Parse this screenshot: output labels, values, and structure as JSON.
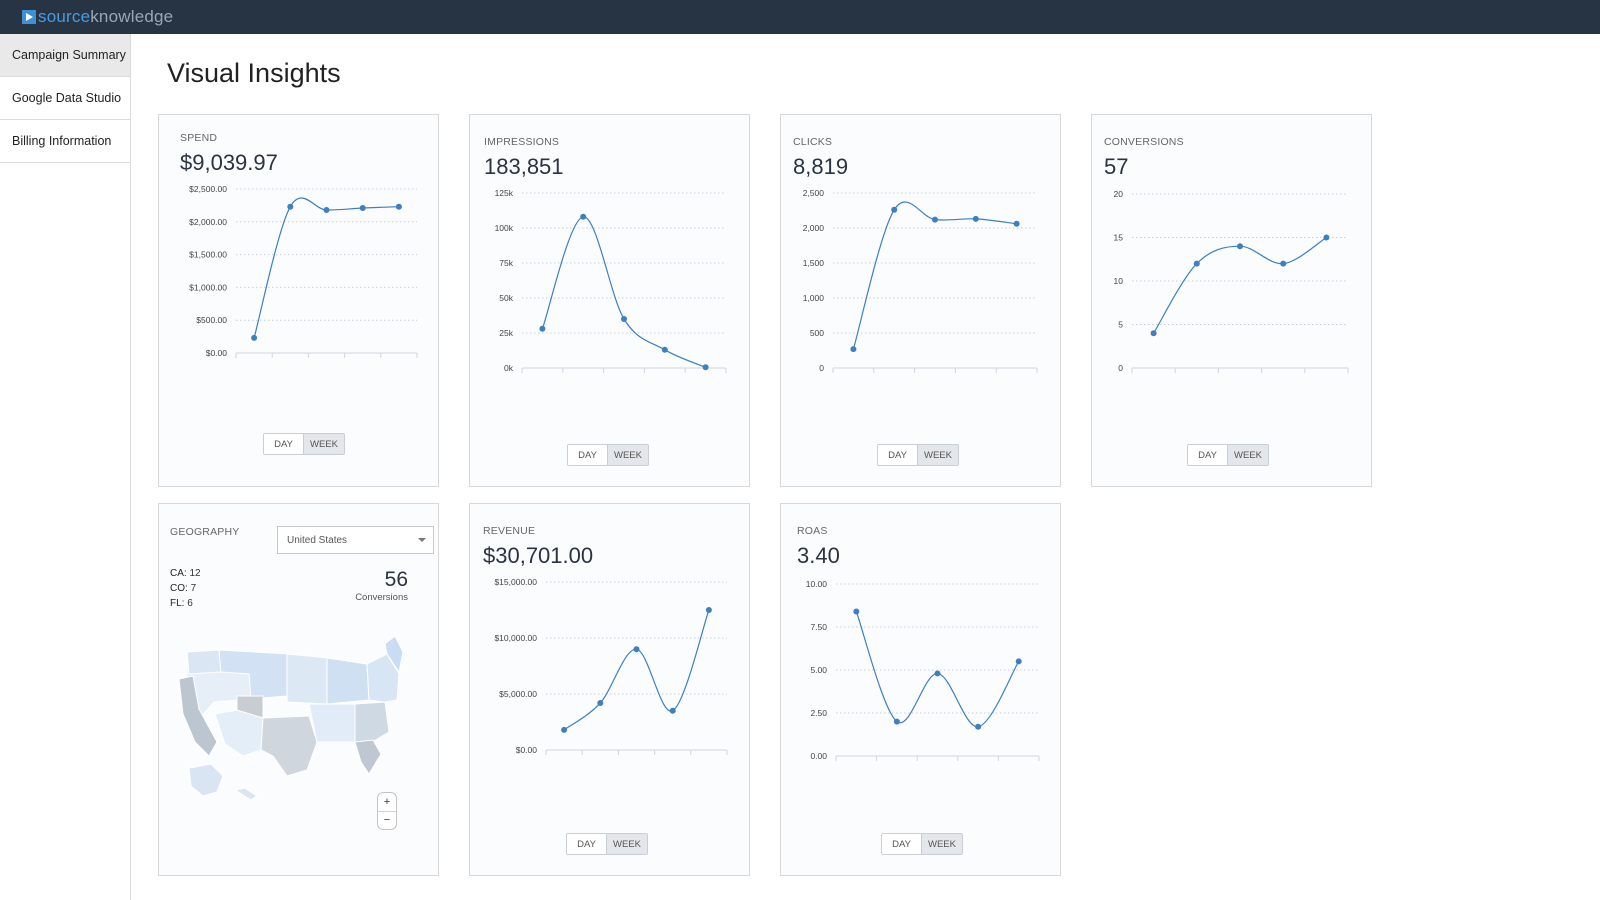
{
  "brand": {
    "part1": "source",
    "part2": "knowledge"
  },
  "sidebar": {
    "items": [
      {
        "label": "Campaign Summary"
      },
      {
        "label": "Google Data Studio"
      },
      {
        "label": "Billing Information"
      }
    ]
  },
  "page": {
    "title": "Visual Insights"
  },
  "toggle": {
    "day": "DAY",
    "week": "WEEK"
  },
  "cards": {
    "spend": {
      "label": "SPEND",
      "value": "$9,039.97"
    },
    "impressions": {
      "label": "IMPRESSIONS",
      "value": "183,851"
    },
    "clicks": {
      "label": "CLICKS",
      "value": "8,819"
    },
    "conversions": {
      "label": "CONVERSIONS",
      "value": "57"
    },
    "revenue": {
      "label": "REVENUE",
      "value": "$30,701.00"
    },
    "roas": {
      "label": "ROAS",
      "value": "3.40"
    }
  },
  "geography": {
    "label": "GEOGRAPHY",
    "selected": "United States",
    "states": [
      {
        "code": "CA:",
        "count": "12"
      },
      {
        "code": "CO:",
        "count": "7"
      },
      {
        "code": "FL:",
        "count": "6"
      }
    ],
    "total": "56",
    "total_label": "Conversions",
    "zoom_in": "+",
    "zoom_out": "−"
  },
  "chart_data": [
    {
      "id": "spend",
      "type": "line",
      "ylim": [
        0,
        2500
      ],
      "yticks": [
        "$2,500.00",
        "$2,000.00",
        "$1,500.00",
        "$1,000.00",
        "$500.00",
        "$0.00"
      ],
      "values": [
        230,
        2230,
        2180,
        2210,
        2230
      ],
      "color": "#3d7fc1"
    },
    {
      "id": "impressions",
      "type": "line",
      "ylim": [
        0,
        125000
      ],
      "yticks": [
        "125k",
        "100k",
        "75k",
        "50k",
        "25k",
        "0k"
      ],
      "values": [
        28000,
        108000,
        35000,
        13000,
        500
      ],
      "color": "#3d7fc1"
    },
    {
      "id": "clicks",
      "type": "line",
      "ylim": [
        0,
        2500
      ],
      "yticks": [
        "2,500",
        "2,000",
        "1,500",
        "1,000",
        "500",
        "0"
      ],
      "values": [
        270,
        2260,
        2120,
        2130,
        2060
      ],
      "color": "#3d7fc1"
    },
    {
      "id": "conversions",
      "type": "line",
      "ylim": [
        0,
        20
      ],
      "yticks": [
        "20",
        "15",
        "10",
        "5",
        "0"
      ],
      "values": [
        4,
        12,
        14,
        12,
        15
      ],
      "color": "#3d7fc1"
    },
    {
      "id": "revenue",
      "type": "line",
      "ylim": [
        0,
        15000
      ],
      "yticks": [
        "$15,000.00",
        "$10,000.00",
        "$5,000.00",
        "$0.00"
      ],
      "values": [
        1800,
        4200,
        9000,
        3500,
        12500
      ],
      "color": "#3d7fc1"
    },
    {
      "id": "roas",
      "type": "line",
      "ylim": [
        0,
        10
      ],
      "yticks": [
        "10.00",
        "7.50",
        "5.00",
        "2.50",
        "0.00"
      ],
      "values": [
        8.4,
        2.0,
        4.8,
        1.7,
        5.5
      ],
      "color": "#3d7fc1"
    }
  ]
}
